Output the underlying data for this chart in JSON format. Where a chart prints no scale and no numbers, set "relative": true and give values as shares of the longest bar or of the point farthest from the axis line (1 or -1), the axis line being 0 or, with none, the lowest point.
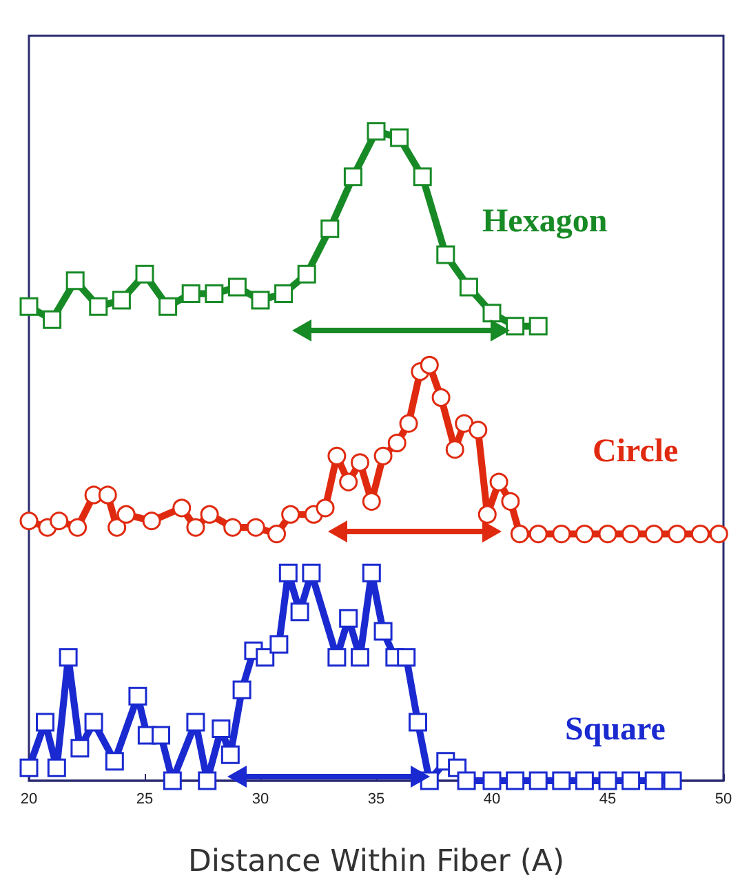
{
  "chart_data": {
    "type": "line",
    "xlabel": "Distance Within Fiber (A)",
    "relative": true,
    "xlim": [
      20,
      50
    ],
    "xticks": [
      20,
      25,
      30,
      35,
      40,
      45,
      50
    ],
    "grid": false,
    "legend": false,
    "series": [
      {
        "name": "Hexagon",
        "color": "#178a25",
        "marker": "square",
        "x": [
          20,
          21,
          22,
          23,
          24,
          25,
          26,
          27,
          28,
          29,
          30,
          31,
          32,
          33,
          34,
          35,
          36,
          37,
          38,
          39,
          40,
          41,
          42
        ],
        "values": [
          0.73,
          0.71,
          0.77,
          0.73,
          0.74,
          0.78,
          0.73,
          0.75,
          0.75,
          0.76,
          0.74,
          0.75,
          0.78,
          0.85,
          0.93,
          1.0,
          0.99,
          0.93,
          0.81,
          0.76,
          0.72,
          0.7,
          0.7
        ]
      },
      {
        "name": "Circle",
        "color": "#e02a10",
        "marker": "circle",
        "x": [
          20.0,
          20.8,
          21.3,
          22.1,
          22.8,
          23.4,
          23.8,
          24.2,
          25.3,
          26.6,
          27.2,
          27.8,
          28.8,
          29.8,
          30.7,
          31.3,
          32.3,
          32.8,
          33.3,
          33.8,
          34.3,
          34.8,
          35.3,
          35.9,
          36.4,
          36.9,
          37.3,
          37.8,
          38.4,
          38.8,
          39.4,
          39.8,
          40.3,
          40.8,
          41.2,
          42,
          43,
          44,
          45,
          46,
          47,
          48,
          49,
          49.8
        ],
        "values": [
          0.4,
          0.39,
          0.4,
          0.39,
          0.44,
          0.44,
          0.39,
          0.41,
          0.4,
          0.42,
          0.39,
          0.41,
          0.39,
          0.39,
          0.38,
          0.41,
          0.41,
          0.42,
          0.5,
          0.46,
          0.49,
          0.43,
          0.5,
          0.52,
          0.55,
          0.63,
          0.64,
          0.59,
          0.51,
          0.55,
          0.54,
          0.41,
          0.46,
          0.43,
          0.38,
          0.38,
          0.38,
          0.38,
          0.38,
          0.38,
          0.38,
          0.38,
          0.38,
          0.38
        ]
      },
      {
        "name": "Square",
        "color": "#1a2ad0",
        "marker": "square",
        "x": [
          20.0,
          20.7,
          21.2,
          21.7,
          22.2,
          22.8,
          23.7,
          24.7,
          25.1,
          25.7,
          26.2,
          27.2,
          27.7,
          28.3,
          28.7,
          29.2,
          29.7,
          30.2,
          30.8,
          31.2,
          31.7,
          32.2,
          33.3,
          33.8,
          34.3,
          34.8,
          35.3,
          35.8,
          36.3,
          36.8,
          37.3,
          38.0,
          38.5,
          38.9,
          40,
          41,
          42,
          43,
          44,
          45,
          46,
          47,
          47.8
        ],
        "values": [
          0.02,
          0.09,
          0.02,
          0.19,
          0.05,
          0.09,
          0.03,
          0.13,
          0.07,
          0.07,
          0.0,
          0.09,
          0.0,
          0.08,
          0.04,
          0.14,
          0.2,
          0.19,
          0.21,
          0.32,
          0.26,
          0.32,
          0.19,
          0.25,
          0.19,
          0.32,
          0.23,
          0.19,
          0.19,
          0.09,
          0.0,
          0.03,
          0.02,
          0.0,
          0.0,
          0.0,
          0.0,
          0.0,
          0.0,
          0.0,
          0.0,
          0.0,
          0.0
        ]
      }
    ]
  }
}
